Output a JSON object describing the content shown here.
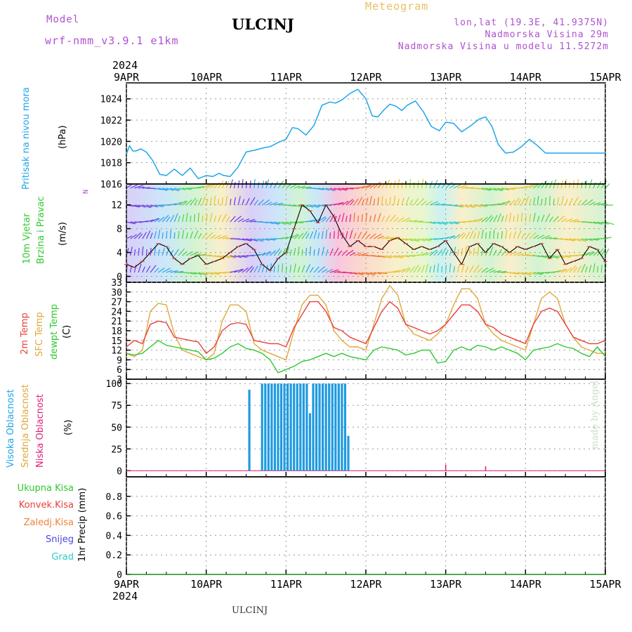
{
  "header": {
    "model_label": "Model",
    "model": "wrf-nmm_v3.9.1 e1km",
    "title": "ULCINJ",
    "product": "Meteogram",
    "lonlat": "lon,lat (19.3E, 41.9375N)",
    "elevation": "Nadmorska Visina 29m",
    "model_elevation": "Nadmorska Visina u modelu 11.5272m"
  },
  "footer": {
    "station": "ULCINJ",
    "credit": "made by Angel"
  },
  "time_axis": {
    "year": "2024",
    "labels": [
      "9APR",
      "10APR",
      "11APR",
      "12APR",
      "13APR",
      "14APR",
      "15APR"
    ]
  },
  "colors": {
    "pressure": "#1fa6e8",
    "temp2m": "#e8413a",
    "sfc_temp": "#e0a83c",
    "dewpt": "#2fc82f",
    "cloud_high": "#1f9ae0",
    "cloud_mid": "#e0a83c",
    "cloud_low": "#e0207a",
    "precip_total": "#2fc82f",
    "precip_conv": "#e8413a",
    "precip_frozen": "#f0823c",
    "precip_snow": "#4848e0",
    "precip_graupel": "#30c8c8"
  },
  "chart_data": [
    {
      "type": "line",
      "id": "pressure",
      "ylabel_side": "Pritisak na nivou mora",
      "ylabel_unit": "(hPa)",
      "ylim": [
        1016,
        1025.5
      ],
      "yticks": [
        1016,
        1018,
        1020,
        1022,
        1024
      ],
      "x_days": [
        0,
        0.04,
        0.08,
        0.12,
        0.18,
        0.25,
        0.33,
        0.42,
        0.5,
        0.6,
        0.7,
        0.8,
        0.9,
        1.0,
        1.08,
        1.16,
        1.22,
        1.3,
        1.4,
        1.5,
        1.62,
        1.72,
        1.8,
        1.9,
        2.0,
        2.08,
        2.15,
        2.25,
        2.35,
        2.45,
        2.55,
        2.62,
        2.7,
        2.8,
        2.9,
        3.0,
        3.08,
        3.15,
        3.22,
        3.3,
        3.38,
        3.45,
        3.52,
        3.62,
        3.72,
        3.82,
        3.92,
        4.0,
        4.1,
        4.2,
        4.32,
        4.42,
        4.5,
        4.58,
        4.66,
        4.75,
        4.85,
        4.95,
        5.05,
        5.15,
        5.25,
        5.35,
        5.45,
        5.55,
        5.65,
        5.72,
        5.8,
        5.9,
        6.0
      ],
      "series": [
        {
          "values": [
            1018.8,
            1019.6,
            1019.1,
            1019.1,
            1019.3,
            1019.0,
            1018.2,
            1016.9,
            1016.8,
            1017.4,
            1016.8,
            1017.5,
            1016.5,
            1016.8,
            1016.7,
            1017.0,
            1016.8,
            1016.7,
            1017.6,
            1019.0,
            1019.2,
            1019.4,
            1019.5,
            1019.9,
            1020.2,
            1021.3,
            1021.2,
            1020.6,
            1021.5,
            1023.4,
            1023.7,
            1023.6,
            1023.9,
            1024.5,
            1024.9,
            1024.0,
            1022.4,
            1022.3,
            1022.9,
            1023.5,
            1023.3,
            1022.9,
            1023.4,
            1023.8,
            1022.8,
            1021.4,
            1021.0,
            1021.8,
            1021.7,
            1020.9,
            1021.5,
            1022.1,
            1022.3,
            1021.4,
            1019.7,
            1018.9,
            1019.0,
            1019.5,
            1020.2,
            1019.6,
            1018.9,
            1018.9,
            1018.9,
            1018.9,
            1018.9,
            1018.9,
            1018.9,
            1018.9,
            1018.9
          ]
        }
      ]
    },
    {
      "type": "line",
      "id": "wind",
      "ylabel_side": "10m Vjetar Brzina i Pravac",
      "ylabel_unit": "(m/s)",
      "compass_legend": "N",
      "ylim": [
        -1,
        15.5
      ],
      "yticks": [
        0,
        4,
        8,
        12
      ],
      "x_days": [
        0,
        0.1,
        0.2,
        0.3,
        0.4,
        0.5,
        0.6,
        0.7,
        0.8,
        0.9,
        1.0,
        1.1,
        1.2,
        1.3,
        1.4,
        1.5,
        1.6,
        1.7,
        1.8,
        1.9,
        2.0,
        2.1,
        2.2,
        2.3,
        2.4,
        2.5,
        2.6,
        2.7,
        2.8,
        2.9,
        3.0,
        3.1,
        3.2,
        3.3,
        3.4,
        3.5,
        3.6,
        3.7,
        3.8,
        3.9,
        4.0,
        4.1,
        4.2,
        4.3,
        4.4,
        4.5,
        4.6,
        4.7,
        4.8,
        4.9,
        5.0,
        5.1,
        5.2,
        5.3,
        5.4,
        5.5,
        5.6,
        5.7,
        5.8,
        5.9,
        6.0
      ],
      "series": [
        {
          "name": "speed",
          "values": [
            2,
            1.5,
            2.5,
            4,
            5.5,
            5,
            3,
            2,
            3,
            3.5,
            2,
            2.5,
            3,
            4,
            5,
            5.5,
            4.5,
            2,
            1,
            3,
            4,
            8,
            12,
            11,
            9,
            12,
            10,
            7,
            5,
            6,
            5,
            5,
            4.5,
            6,
            6.5,
            5.5,
            4.5,
            5,
            4.5,
            5,
            6,
            4,
            2,
            5,
            5.5,
            4,
            5.5,
            5,
            4,
            5,
            4.5,
            5,
            5.5,
            3,
            4.5,
            2,
            2.5,
            3,
            5,
            4.5,
            2.5
          ]
        }
      ]
    },
    {
      "type": "line",
      "id": "temperature",
      "ylabel_side": [
        "2m Temp",
        "SFC Temp",
        "dewpt Temp"
      ],
      "ylabel_unit": "(C)",
      "ylim": [
        3,
        33
      ],
      "yticks": [
        3,
        6,
        9,
        12,
        15,
        18,
        21,
        24,
        27,
        30,
        33
      ],
      "x_days": [
        0,
        0.1,
        0.2,
        0.3,
        0.4,
        0.5,
        0.6,
        0.7,
        0.8,
        0.9,
        1.0,
        1.1,
        1.2,
        1.3,
        1.4,
        1.5,
        1.6,
        1.7,
        1.8,
        1.9,
        2.0,
        2.1,
        2.2,
        2.3,
        2.4,
        2.5,
        2.6,
        2.7,
        2.8,
        2.9,
        3.0,
        3.1,
        3.2,
        3.3,
        3.4,
        3.5,
        3.6,
        3.7,
        3.8,
        3.9,
        4.0,
        4.1,
        4.2,
        4.3,
        4.4,
        4.5,
        4.6,
        4.7,
        4.8,
        4.9,
        5.0,
        5.1,
        5.2,
        5.3,
        5.4,
        5.5,
        5.6,
        5.7,
        5.8,
        5.9,
        6.0
      ],
      "series": [
        {
          "name": "2m Temp",
          "values": [
            13,
            15,
            14,
            20,
            21,
            20.5,
            16,
            15.5,
            15,
            14.5,
            11,
            13,
            18,
            20,
            20.5,
            20,
            15,
            14.5,
            14,
            14,
            13,
            19,
            23,
            27,
            27,
            24,
            19,
            18,
            16,
            15,
            14,
            19,
            24,
            27,
            25,
            20,
            19,
            18,
            17,
            18,
            20,
            23,
            26,
            26,
            24,
            20,
            19,
            17,
            16,
            15,
            14,
            20,
            24,
            25,
            24,
            20,
            16,
            15,
            14,
            14,
            15
          ]
        },
        {
          "name": "SFC Temp",
          "values": [
            11,
            10,
            12,
            24,
            26.5,
            26,
            17,
            12,
            11,
            10,
            9,
            11,
            21,
            26,
            26,
            24,
            14,
            12,
            11,
            10,
            9,
            18,
            26,
            29,
            29,
            26,
            18,
            15,
            13,
            13,
            12,
            20,
            28,
            32,
            29,
            20,
            17,
            16,
            15,
            17,
            20,
            26,
            31,
            31,
            28,
            20,
            17,
            15,
            14,
            13,
            12,
            20,
            28,
            30,
            28,
            20,
            16,
            13,
            12,
            11,
            11
          ]
        },
        {
          "name": "dewpt Temp",
          "values": [
            11,
            10.5,
            11,
            13,
            15,
            13.5,
            13,
            12.5,
            12,
            11.5,
            9,
            9.5,
            11,
            13,
            14,
            12.5,
            12,
            11,
            9,
            5,
            6,
            7,
            8.5,
            9,
            10,
            11,
            10,
            11,
            10,
            9.5,
            9,
            12,
            13,
            12.5,
            12,
            10.5,
            11,
            12,
            12,
            8,
            8.5,
            12,
            13,
            12,
            13.5,
            13,
            12,
            13,
            12,
            11,
            9,
            12,
            12.5,
            13,
            14,
            13,
            12.5,
            11,
            10,
            13,
            10
          ]
        }
      ]
    },
    {
      "type": "bar",
      "id": "cloud",
      "ylabel_side": [
        "Visoka Oblacnost",
        "Srednja Oblacnost",
        "Niska Oblacnost"
      ],
      "ylabel_unit": "(%)",
      "ylim": [
        -7,
        105
      ],
      "yticks": [
        0,
        25,
        50,
        75,
        100
      ],
      "series": [
        {
          "name": "Visoka Oblacnost",
          "x_days": [
            1.54,
            1.7,
            1.74,
            1.78,
            1.82,
            1.86,
            1.9,
            1.94,
            1.98,
            2.02,
            2.06,
            2.1,
            2.14,
            2.18,
            2.22,
            2.26,
            2.3,
            2.34,
            2.38,
            2.42,
            2.46,
            2.5,
            2.54,
            2.58,
            2.62,
            2.66,
            2.7,
            2.74,
            2.78
          ],
          "values": [
            93,
            100,
            100,
            100,
            100,
            100,
            100,
            100,
            100,
            100,
            100,
            100,
            100,
            100,
            100,
            100,
            66,
            100,
            100,
            100,
            100,
            100,
            100,
            100,
            100,
            100,
            100,
            100,
            40
          ]
        },
        {
          "name": "Niska Oblacnost",
          "x_days": [
            4.0,
            4.5
          ],
          "values": [
            7,
            5
          ]
        }
      ]
    },
    {
      "type": "line",
      "id": "precip",
      "ylabel_side": "1hr Precip",
      "ylabel_unit": "(mm)",
      "legend": [
        "Ukupna Kisa",
        "Konvek.Kisa",
        "Zaledj.Kisa",
        "Snijeg",
        "Grad"
      ],
      "ylim": [
        0,
        1
      ],
      "yticks": [
        0,
        0.2,
        0.4,
        0.6,
        0.8
      ],
      "x_days": [
        0,
        6
      ],
      "series": [
        {
          "name": "Ukupna Kisa",
          "values": [
            0,
            0
          ]
        }
      ]
    }
  ]
}
